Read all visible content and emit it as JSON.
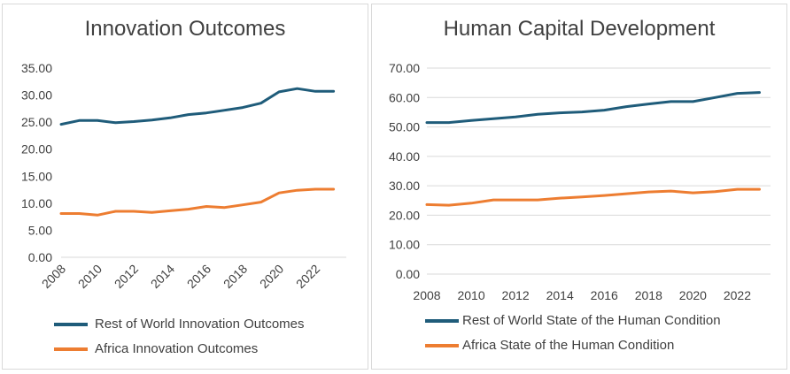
{
  "colors": {
    "rest_of_world": "#1f5c7a",
    "africa": "#ed7d31",
    "grid": "#d9d9d9",
    "text": "#404040"
  },
  "chart_data": [
    {
      "type": "line",
      "title": "Innovation Outcomes",
      "xlabel": "",
      "ylabel": "",
      "x": [
        2008,
        2009,
        2010,
        2011,
        2012,
        2013,
        2014,
        2015,
        2016,
        2017,
        2018,
        2019,
        2020,
        2021,
        2022,
        2023
      ],
      "x_tick_labels": [
        "2008",
        "2010",
        "2012",
        "2014",
        "2016",
        "2018",
        "2020",
        "2022"
      ],
      "x_tick_rotation": "diagonal",
      "y_tick_labels": [
        "0.00",
        "5.00",
        "10.00",
        "15.00",
        "20.00",
        "25.00",
        "30.00",
        "35.00"
      ],
      "ylim": [
        0,
        35
      ],
      "grid": false,
      "legend_position": "bottom",
      "series": [
        {
          "name": "Rest of World Innovation Outcomes",
          "color_key": "rest_of_world",
          "values": [
            24.6,
            25.3,
            25.3,
            24.9,
            25.1,
            25.4,
            25.8,
            26.4,
            26.7,
            27.2,
            27.7,
            28.5,
            30.6,
            31.2,
            30.7,
            30.7
          ]
        },
        {
          "name": "Africa Innovation Outcomes",
          "color_key": "africa",
          "values": [
            8.1,
            8.1,
            7.8,
            8.5,
            8.5,
            8.3,
            8.6,
            8.9,
            9.4,
            9.2,
            9.7,
            10.2,
            11.9,
            12.4,
            12.6,
            12.6
          ]
        }
      ]
    },
    {
      "type": "line",
      "title": "Human Capital Development",
      "xlabel": "",
      "ylabel": "",
      "x": [
        2008,
        2009,
        2010,
        2011,
        2012,
        2013,
        2014,
        2015,
        2016,
        2017,
        2018,
        2019,
        2020,
        2021,
        2022,
        2023
      ],
      "x_tick_labels": [
        "2008",
        "2010",
        "2012",
        "2014",
        "2016",
        "2018",
        "2020",
        "2022"
      ],
      "x_tick_rotation": "horizontal",
      "y_tick_labels": [
        "0.00",
        "10.00",
        "20.00",
        "30.00",
        "40.00",
        "50.00",
        "60.00",
        "70.00"
      ],
      "ylim": [
        0,
        70
      ],
      "grid": true,
      "legend_position": "bottom",
      "series": [
        {
          "name": "Rest of World State of the Human Condition",
          "color_key": "rest_of_world",
          "values": [
            51.5,
            51.5,
            52.2,
            52.8,
            53.4,
            54.3,
            54.8,
            55.1,
            55.7,
            56.9,
            57.8,
            58.6,
            58.6,
            60.0,
            61.4,
            61.7
          ]
        },
        {
          "name": "Africa State of the Human Condition",
          "color_key": "africa",
          "values": [
            23.6,
            23.4,
            24.1,
            25.2,
            25.2,
            25.2,
            25.8,
            26.2,
            26.7,
            27.3,
            27.9,
            28.2,
            27.6,
            28.0,
            28.8,
            28.8
          ]
        }
      ]
    }
  ]
}
